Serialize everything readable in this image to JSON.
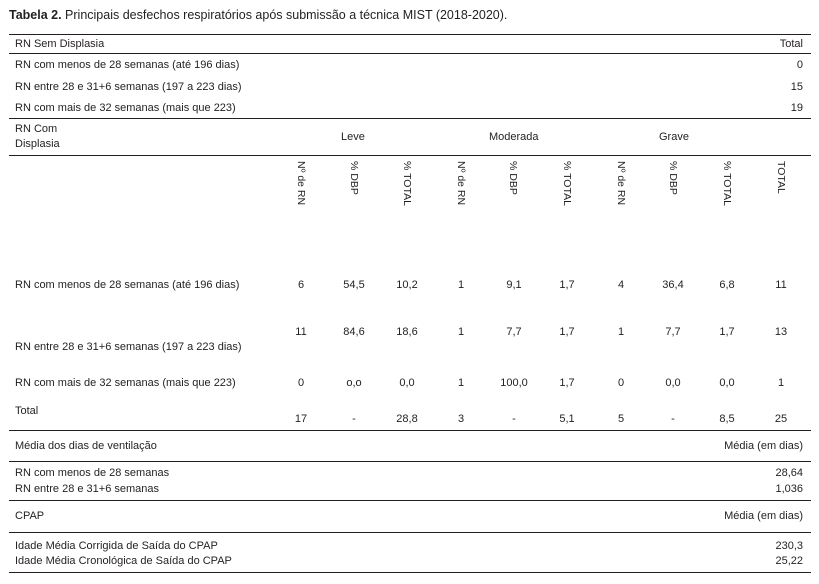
{
  "caption": {
    "bold": "Tabela 2.",
    "text": " Principais desfechos respiratórios após submissão a técnica MIST (2018-2020)."
  },
  "sem_displasia": {
    "header": "RN Sem Displasia",
    "total_header": "Total",
    "rows": [
      {
        "label": "RN com menos de 28 semanas (até 196 dias)",
        "total": "0"
      },
      {
        "label": "RN entre 28 e 31+6 semanas (197 a 223 dias)",
        "total": "15"
      },
      {
        "label": "RN com mais de 32 semanas (mais que 223)",
        "total": "19"
      }
    ]
  },
  "com_displasia": {
    "header_line1": "RN Com",
    "header_line2": "Displasia",
    "groups": [
      "Leve",
      "Moderada",
      "Grave"
    ],
    "columns": [
      "Nº de RN",
      "% DBP",
      "% TOTAL",
      "Nº de RN",
      "% DBP",
      "% TOTAL",
      "Nº de RN",
      "% DBP",
      "% TOTAL",
      "TOTAL"
    ],
    "rows": [
      {
        "label": "RN com menos de 28 semanas (até 196 dias)",
        "values": [
          "6",
          "54,5",
          "10,2",
          "1",
          "9,1",
          "1,7",
          "4",
          "36,4",
          "6,8",
          "11"
        ]
      },
      {
        "label": "RN entre 28 e 31+6 semanas (197 a 223 dias)",
        "values": [
          "11",
          "84,6",
          "18,6",
          "1",
          "7,7",
          "1,7",
          "1",
          "7,7",
          "1,7",
          "13"
        ]
      },
      {
        "label": "RN com mais de 32 semanas (mais que 223)",
        "values": [
          "0",
          "o,o",
          "0,0",
          "1",
          "100,0",
          "1,7",
          "0",
          "0,0",
          "0,0",
          "1"
        ]
      },
      {
        "label": "Total",
        "values": [
          "17",
          "-",
          "28,8",
          "3",
          "-",
          "5,1",
          "5",
          "-",
          "8,5",
          "25"
        ]
      }
    ]
  },
  "ventilacao": {
    "header": "Média dos dias de ventilação",
    "unit": "Média (em dias)",
    "rows": [
      {
        "label": "RN com menos de 28 semanas",
        "value": "28,64"
      },
      {
        "label": "RN entre 28 e 31+6 semanas",
        "value": "1,036"
      }
    ]
  },
  "cpap": {
    "header": "CPAP",
    "unit": "Média (em dias)",
    "rows": [
      {
        "label": "Idade Média Corrigida de Saída do CPAP",
        "value": "230,3"
      },
      {
        "label": "Idade Média Cronológica de Saída do CPAP",
        "value": "25,22"
      }
    ]
  }
}
